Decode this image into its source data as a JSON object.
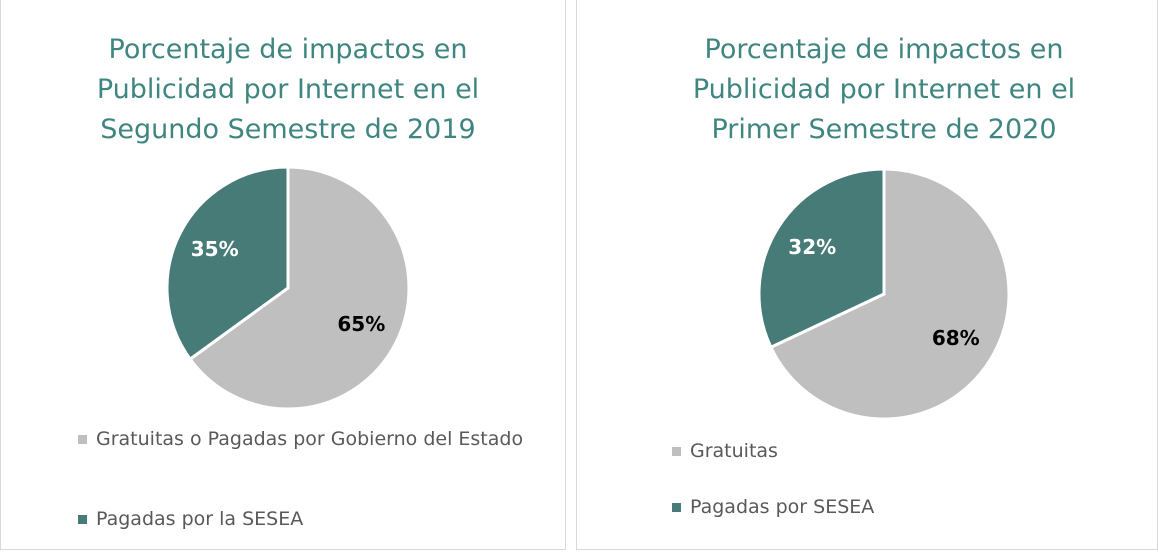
{
  "chart_data": [
    {
      "type": "pie",
      "title": "Porcentaje de impactos en Publicidad por Internet en el Segundo Semestre de 2019",
      "categories": [
        "Gratuitas o Pagadas por Gobierno del Estado",
        "Pagadas por la SESEA"
      ],
      "values": [
        65,
        35
      ],
      "value_labels": [
        "65%",
        "35%"
      ],
      "colors": [
        "#bfbfbf",
        "#467b78"
      ],
      "label_colors": [
        "#000000",
        "#ffffff"
      ]
    },
    {
      "type": "pie",
      "title": "Porcentaje de impactos en Publicidad por Internet en el Primer Semestre de 2020",
      "categories": [
        "Gratuitas",
        "Pagadas por SESEA"
      ],
      "values": [
        68,
        32
      ],
      "value_labels": [
        "68%",
        "32%"
      ],
      "colors": [
        "#bfbfbf",
        "#467b78"
      ],
      "label_colors": [
        "#000000",
        "#ffffff"
      ]
    }
  ]
}
